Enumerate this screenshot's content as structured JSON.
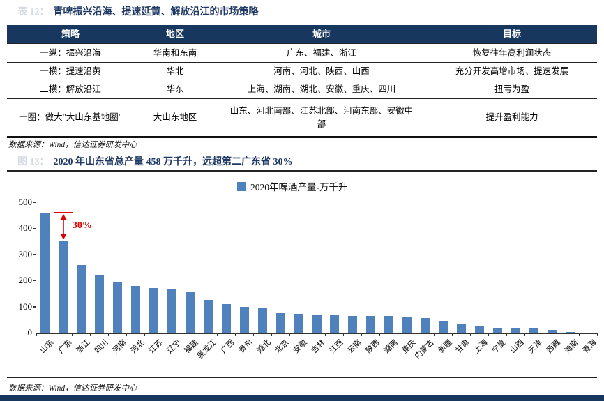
{
  "page": {
    "table_section": {
      "figure_prefix": "表 12：",
      "title": "青啤振兴沿海、提速延黄、解放沿江的市场策略",
      "table": {
        "headers": [
          "策略",
          "地区",
          "城市",
          "目标"
        ],
        "rows": [
          {
            "cells": [
              "一纵：振兴沿海",
              "华南和东南",
              "广东、福建、浙江",
              "恢复往年高利润状态"
            ]
          },
          {
            "cells": [
              "一横：提速沿黄",
              "华北",
              "河南、河北、陕西、山西",
              "充分开发高增市场、提速发展"
            ]
          },
          {
            "cells": [
              "二横：解放沿江",
              "华东",
              "上海、湖南、湖北、安徽、重庆、四川",
              "扭亏为盈"
            ]
          },
          {
            "cells": [
              "一圈：做大\"大山东基地圈\"",
              "大山东地区",
              "山东、河北南部、江苏北部、河南东部、安徽中部",
              "提升盈利能力"
            ]
          }
        ]
      },
      "source": "数据来源：Wind，信达证券研发中心"
    },
    "chart_section": {
      "figure_prefix": "图 13：",
      "title": "2020 年山东省总产量 458 万千升，远超第二广东省 30%",
      "source": "数据来源：Wind，信达证券研发中心"
    }
  },
  "chart_data": {
    "type": "bar",
    "title": "2020 年山东省总产量 458 万千升，远超第二广东省 30%",
    "legend": [
      "2020年啤酒产量-万千升"
    ],
    "legend_position": "top-center",
    "xlabel": "",
    "ylabel": "2020年啤酒产量-万千升",
    "categories": [
      "山东",
      "广东",
      "浙江",
      "四川",
      "河南",
      "河北",
      "江苏",
      "辽宁",
      "福建",
      "黑龙江",
      "广西",
      "贵州",
      "湖北",
      "北京",
      "安徽",
      "吉林",
      "江西",
      "云南",
      "陕西",
      "湖南",
      "重庆",
      "内蒙古",
      "新疆",
      "甘肃",
      "上海",
      "宁夏",
      "山西",
      "天津",
      "西藏",
      "海南",
      "青海"
    ],
    "values": [
      458,
      352,
      260,
      218,
      193,
      178,
      172,
      168,
      155,
      127,
      110,
      98,
      93,
      75,
      71,
      68,
      66,
      65,
      64,
      63,
      62,
      56,
      45,
      32,
      25,
      20,
      16,
      15,
      12,
      3,
      1
    ],
    "ylim": [
      0,
      500
    ],
    "yticks": [
      0,
      100,
      200,
      300,
      400,
      500
    ],
    "grid": false,
    "bar_color": "#4F81BD",
    "annotation": {
      "text": "30%",
      "from_index": 0,
      "to_index": 1,
      "color": "#DD0000"
    }
  },
  "colors": {
    "navy": "#17375E",
    "title_navy": "#1F3864",
    "bar_blue": "#4F81BD",
    "annotation_red": "#DD0000"
  }
}
